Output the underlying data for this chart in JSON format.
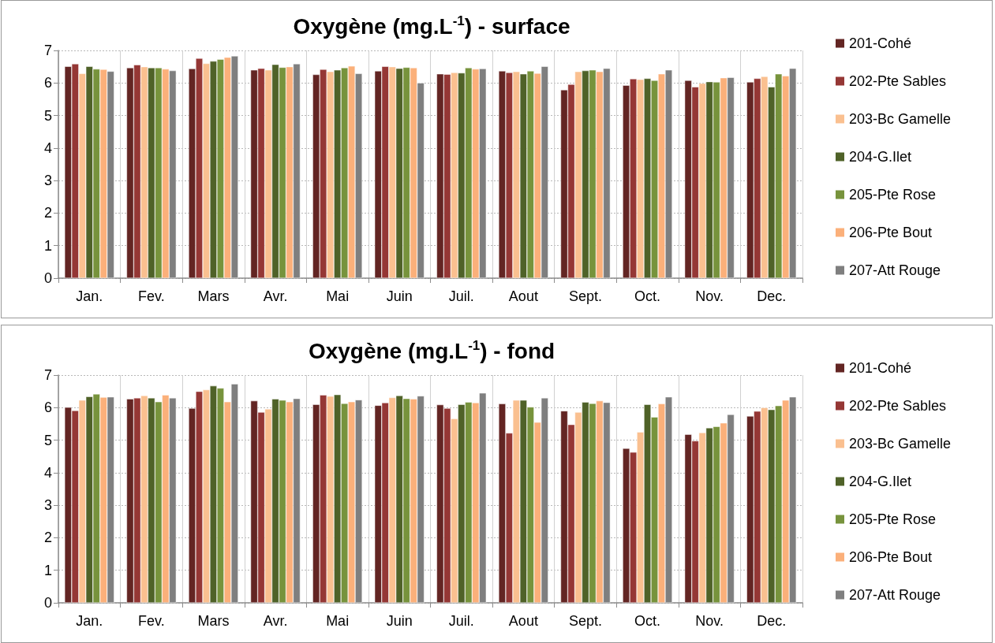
{
  "chart_data": [
    {
      "type": "bar",
      "title": "Oxygène (mg.L$^{-1}$) - surface",
      "categories": [
        "Jan.",
        "Fev.",
        "Mars",
        "Avr.",
        "Mai",
        "Juin",
        "Juil.",
        "Aout",
        "Sept.",
        "Oct.",
        "Nov.",
        "Dec."
      ],
      "ylim": [
        0,
        7
      ],
      "yticks": [
        0,
        1,
        2,
        3,
        4,
        5,
        6,
        7
      ],
      "grid": true,
      "legend": "right",
      "series": [
        {
          "name": "201-Cohé",
          "color": "#632523",
          "values": [
            6.51,
            6.47,
            6.44,
            6.4,
            6.26,
            6.37,
            6.28,
            6.37,
            5.79,
            5.93,
            6.08,
            6.03
          ]
        },
        {
          "name": "202-Pte Sables",
          "color": "#953735",
          "values": [
            6.59,
            6.56,
            6.76,
            6.45,
            6.42,
            6.51,
            6.27,
            6.32,
            5.96,
            6.13,
            5.88,
            6.14
          ]
        },
        {
          "name": "203-Bc Gamelle",
          "color": "#fac090",
          "values": [
            6.29,
            6.5,
            6.6,
            6.4,
            6.35,
            6.5,
            6.32,
            6.35,
            6.35,
            6.11,
            5.99,
            6.2
          ]
        },
        {
          "name": "204-G.Ilet",
          "color": "#4f6228",
          "values": [
            6.51,
            6.47,
            6.67,
            6.57,
            6.4,
            6.45,
            6.31,
            6.28,
            6.38,
            6.14,
            6.04,
            5.88
          ]
        },
        {
          "name": "205-Pte Rose",
          "color": "#77933c",
          "values": [
            6.43,
            6.47,
            6.73,
            6.48,
            6.47,
            6.48,
            6.47,
            6.37,
            6.4,
            6.08,
            6.03,
            6.28
          ]
        },
        {
          "name": "206-Pte Bout",
          "color": "#fbb07a",
          "values": [
            6.42,
            6.43,
            6.79,
            6.5,
            6.52,
            6.47,
            6.43,
            6.3,
            6.35,
            6.28,
            6.16,
            6.22
          ]
        },
        {
          "name": "207-Att Rouge",
          "color": "#7f7f7f",
          "values": [
            6.36,
            6.38,
            6.83,
            6.59,
            6.29,
            6.0,
            6.44,
            6.51,
            6.45,
            6.4,
            6.17,
            6.45
          ]
        }
      ]
    },
    {
      "type": "bar",
      "title": "Oxygène (mg.L$^{-1}$) - fond",
      "categories": [
        "Jan.",
        "Fev.",
        "Mars",
        "Avr.",
        "Mai",
        "Juin",
        "Juil.",
        "Aout",
        "Sept.",
        "Oct.",
        "Nov.",
        "Dec."
      ],
      "ylim": [
        0,
        7
      ],
      "yticks": [
        0,
        1,
        2,
        3,
        4,
        5,
        6,
        7
      ],
      "grid": true,
      "legend": "right",
      "series": [
        {
          "name": "201-Cohé",
          "color": "#632523",
          "values": [
            6.01,
            6.27,
            5.98,
            6.21,
            6.1,
            6.07,
            6.09,
            6.12,
            5.9,
            4.75,
            5.18,
            5.74
          ]
        },
        {
          "name": "202-Pte Sables",
          "color": "#953735",
          "values": [
            5.91,
            6.3,
            6.5,
            5.86,
            6.39,
            6.15,
            5.98,
            5.22,
            5.48,
            4.63,
            4.98,
            5.89
          ]
        },
        {
          "name": "203-Bc Gamelle",
          "color": "#fac090",
          "values": [
            6.23,
            6.37,
            6.55,
            5.96,
            6.35,
            6.31,
            5.66,
            6.23,
            5.86,
            5.25,
            5.23,
            6.0
          ]
        },
        {
          "name": "204-G.Ilet",
          "color": "#4f6228",
          "values": [
            6.34,
            6.3,
            6.67,
            6.27,
            6.4,
            6.37,
            6.1,
            6.23,
            6.17,
            6.1,
            5.38,
            5.94
          ]
        },
        {
          "name": "205-Pte Rose",
          "color": "#77933c",
          "values": [
            6.42,
            6.18,
            6.6,
            6.23,
            6.13,
            6.28,
            6.17,
            6.02,
            6.13,
            5.71,
            5.42,
            6.06
          ]
        },
        {
          "name": "206-Pte Bout",
          "color": "#fbb07a",
          "values": [
            6.32,
            6.39,
            6.18,
            6.18,
            6.18,
            6.27,
            6.15,
            5.55,
            6.21,
            6.12,
            5.53,
            6.23
          ]
        },
        {
          "name": "207-Att Rouge",
          "color": "#7f7f7f",
          "values": [
            6.33,
            6.3,
            6.73,
            6.28,
            6.24,
            6.36,
            6.45,
            6.3,
            6.16,
            6.33,
            5.79,
            6.33
          ]
        }
      ]
    }
  ]
}
